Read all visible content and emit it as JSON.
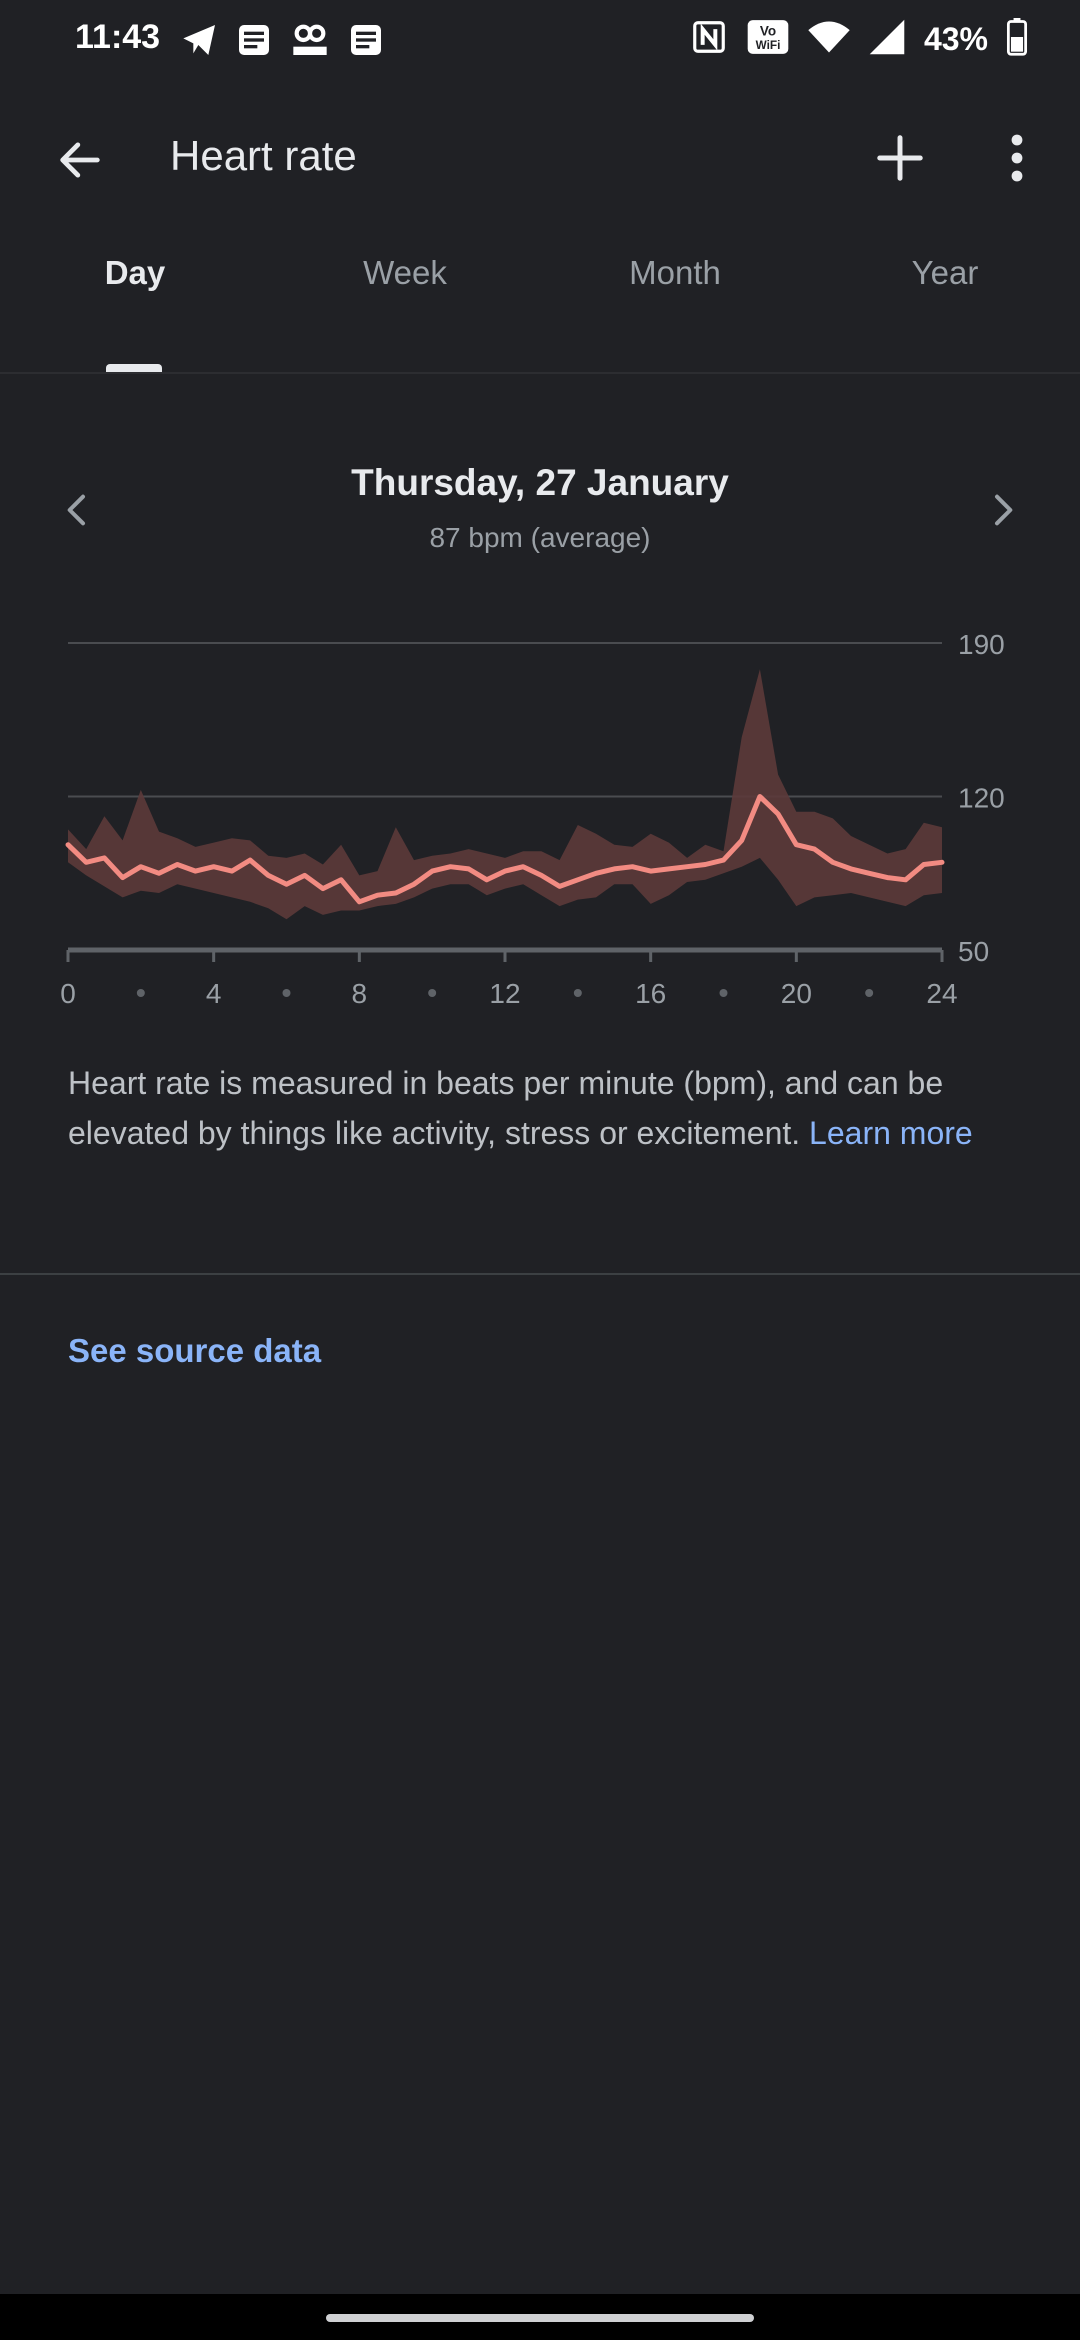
{
  "status_bar": {
    "time": "11:43",
    "battery": "43%",
    "icons_left": [
      "telegram-icon",
      "document-icon",
      "hood-icon",
      "document-icon"
    ],
    "icons_right": [
      "nfc-icon",
      "vowifi-icon",
      "wifi-icon",
      "signal-icon",
      "battery-icon"
    ]
  },
  "app_bar": {
    "title": "Heart rate"
  },
  "tabs": [
    {
      "label": "Day",
      "active": true
    },
    {
      "label": "Week",
      "active": false
    },
    {
      "label": "Month",
      "active": false
    },
    {
      "label": "Year",
      "active": false
    }
  ],
  "summary": {
    "date": "Thursday, 27 January",
    "average": "87 bpm (average)"
  },
  "chart_data": {
    "type": "line",
    "x_ticks": [
      "0",
      "4",
      "8",
      "12",
      "16",
      "20",
      "24"
    ],
    "y_ticks": [
      "190",
      "120",
      "50"
    ],
    "xlim": [
      0,
      24
    ],
    "ylim": [
      50,
      190
    ],
    "grid": true,
    "series": [
      {
        "x": [
          0,
          0.5,
          1,
          1.5,
          2,
          2.5,
          3,
          3.5,
          4,
          4.5,
          5,
          5.5,
          6,
          6.5,
          7,
          7.5,
          8,
          8.5,
          9,
          9.5,
          10,
          10.5,
          11,
          11.5,
          12,
          12.5,
          13,
          13.5,
          14,
          14.5,
          15,
          15.5,
          16,
          16.5,
          17,
          17.5,
          18,
          18.5,
          19,
          19.5,
          20,
          20.5,
          21,
          21.5,
          22,
          22.5,
          23,
          23.5,
          24
        ],
        "values": [
          98,
          90,
          92,
          83,
          88,
          85,
          89,
          86,
          88,
          86,
          91,
          84,
          80,
          84,
          78,
          82,
          72,
          75,
          76,
          80,
          86,
          88,
          87,
          82,
          86,
          88,
          84,
          79,
          82,
          85,
          87,
          88,
          86,
          87,
          88,
          89,
          91,
          100,
          120,
          112,
          98,
          96,
          90,
          87,
          85,
          83,
          82,
          89,
          90
        ],
        "low": [
          90,
          84,
          79,
          74,
          77,
          76,
          80,
          78,
          76,
          74,
          72,
          69,
          64,
          70,
          66,
          68,
          68,
          70,
          71,
          74,
          78,
          80,
          80,
          75,
          78,
          80,
          75,
          70,
          73,
          74,
          80,
          80,
          71,
          75,
          81,
          82,
          85,
          88,
          92,
          82,
          70,
          74,
          75,
          76,
          74,
          72,
          70,
          75,
          76
        ],
        "high": [
          105,
          96,
          111,
          100,
          123,
          104,
          101,
          97,
          99,
          101,
          100,
          93,
          92,
          94,
          89,
          98,
          84,
          86,
          106,
          91,
          93,
          94,
          96,
          94,
          92,
          95,
          95,
          91,
          107,
          103,
          98,
          97,
          103,
          99,
          92,
          98,
          95,
          147,
          178,
          130,
          113,
          113,
          110,
          102,
          98,
          94,
          96,
          108,
          106
        ]
      }
    ]
  },
  "info_text": "Heart rate is measured in beats per minute (bpm), and can be elevated by things like activity, stress or excitement. ",
  "learn_more": "Learn more",
  "see_source": "See source data",
  "colors": {
    "background": "#202125",
    "line": "#f28b82",
    "band": "#5c3a3a",
    "link": "#8ab4f8"
  }
}
